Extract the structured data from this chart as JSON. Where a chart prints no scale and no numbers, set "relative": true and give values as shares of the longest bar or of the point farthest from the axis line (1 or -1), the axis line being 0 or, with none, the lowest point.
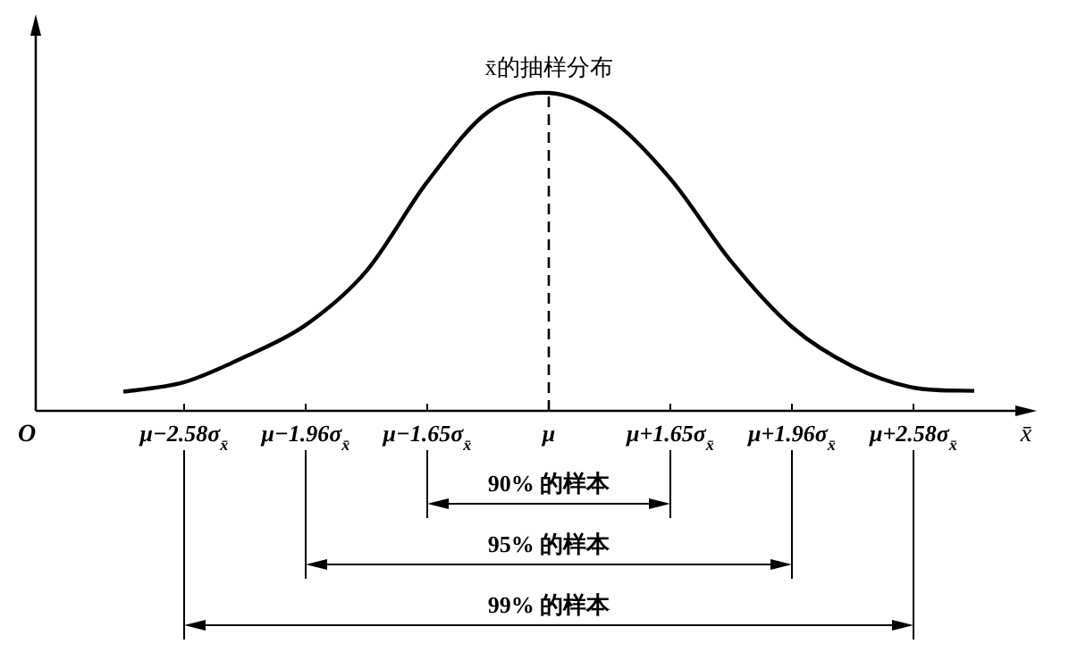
{
  "chart_data": {
    "type": "line",
    "relative": true,
    "xlabel": "x̄",
    "categories": [
      null,
      "μ−2.58σ$_{x̄}$",
      null,
      "μ−1.96σ$_{x̄}$",
      null,
      "μ−1.65σ$_{x̄}$",
      null,
      "μ",
      null,
      "μ+1.65σ$_{x̄}$",
      null,
      "μ+1.96σ$_{x̄}$",
      null,
      "μ+2.58σ$_{x̄}$",
      null
    ],
    "series": [
      {
        "name": "x̄的抽样分布",
        "color": "#000000",
        "values": [
          0.06,
          0.09,
          0.17,
          0.27,
          0.44,
          0.72,
          0.94,
          1,
          0.92,
          0.73,
          0.47,
          0.264,
          0.14,
          0.073,
          0.063
        ]
      }
    ],
    "ref_lines": [
      {
        "axis": "x",
        "value": "μ",
        "line_style": "dashed"
      }
    ],
    "annotations": [
      "O",
      "90% 的样本",
      "95% 的样本",
      "99% 的样本"
    ]
  }
}
